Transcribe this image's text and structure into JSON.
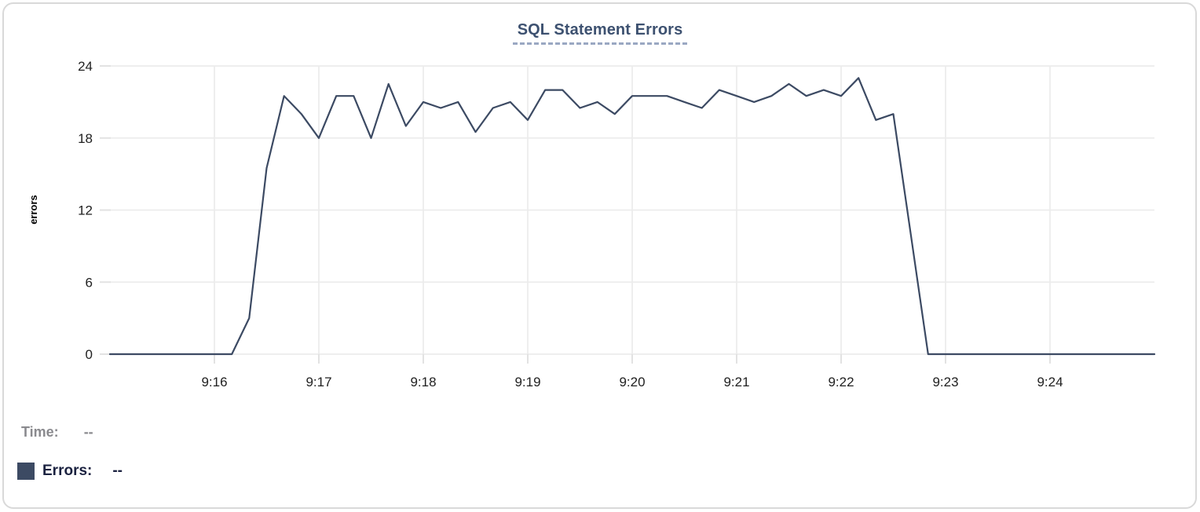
{
  "chart": {
    "title": "SQL Statement Errors",
    "y_axis_label": "errors"
  },
  "legend": {
    "time_label": "Time:",
    "time_value": "--",
    "errors_label": "Errors:",
    "errors_value": "--",
    "swatch_icon": "square-swatch"
  },
  "colors": {
    "line": "#3c4a63",
    "swatch": "#3c4a63",
    "title": "#3d5170",
    "title_underline": "#9aa8c2",
    "grid": "#ececec",
    "axis_text": "#212121",
    "legend_gray": "#8a8a8e",
    "legend_navy": "#1b2240",
    "card_border": "#d9d9d9"
  },
  "chart_data": {
    "type": "line",
    "title": "SQL Statement Errors",
    "xlabel": "",
    "ylabel": "errors",
    "ylim": [
      0,
      24
    ],
    "grid": true,
    "legend_position": "bottom-left",
    "x_tick_labels": [
      "9:16",
      "9:17",
      "9:18",
      "9:19",
      "9:20",
      "9:21",
      "9:22",
      "9:23",
      "9:24"
    ],
    "y_tick_labels": [
      0,
      6,
      12,
      18,
      24
    ],
    "x_start": "9:15:00",
    "x_end": "9:25:00",
    "x_interval_seconds": 10,
    "x": [
      "9:15:00",
      "9:15:10",
      "9:15:20",
      "9:15:30",
      "9:15:40",
      "9:15:50",
      "9:16:00",
      "9:16:10",
      "9:16:20",
      "9:16:30",
      "9:16:40",
      "9:16:50",
      "9:17:00",
      "9:17:10",
      "9:17:20",
      "9:17:30",
      "9:17:40",
      "9:17:50",
      "9:18:00",
      "9:18:10",
      "9:18:20",
      "9:18:30",
      "9:18:40",
      "9:18:50",
      "9:19:00",
      "9:19:10",
      "9:19:20",
      "9:19:30",
      "9:19:40",
      "9:19:50",
      "9:20:00",
      "9:20:10",
      "9:20:20",
      "9:20:30",
      "9:20:40",
      "9:20:50",
      "9:21:00",
      "9:21:10",
      "9:21:20",
      "9:21:30",
      "9:21:40",
      "9:21:50",
      "9:22:00",
      "9:22:10",
      "9:22:20",
      "9:22:30",
      "9:22:40",
      "9:22:50",
      "9:23:00",
      "9:23:10",
      "9:23:20",
      "9:23:30",
      "9:23:40",
      "9:23:50",
      "9:24:00",
      "9:24:10",
      "9:24:20",
      "9:24:30",
      "9:24:40",
      "9:24:50",
      "9:25:00"
    ],
    "series": [
      {
        "name": "Errors",
        "color": "#3c4a63",
        "values": [
          0,
          0,
          0,
          0,
          0,
          0,
          0,
          0,
          3,
          15.5,
          21.5,
          20,
          18,
          21.5,
          21.5,
          18,
          22.5,
          19,
          21,
          20.5,
          21,
          18.5,
          20.5,
          21,
          19.5,
          22,
          22,
          20.5,
          21,
          20,
          21.5,
          21.5,
          21.5,
          21,
          20.5,
          22,
          21.5,
          21,
          21.5,
          22.5,
          21.5,
          22,
          21.5,
          23,
          19.5,
          20,
          10,
          0,
          0,
          0,
          0,
          0,
          0,
          0,
          0,
          0,
          0,
          0,
          0,
          0,
          0
        ]
      }
    ]
  }
}
